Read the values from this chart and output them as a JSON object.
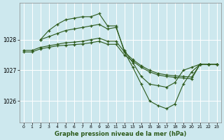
{
  "background_color": "#cde8ee",
  "grid_color": "#b0d8e0",
  "line_color": "#2d5a1b",
  "xlabel": "Graphe pression niveau de la mer (hPa)",
  "ylim": [
    1025.3,
    1029.2
  ],
  "xlim": [
    -0.5,
    23.5
  ],
  "yticks": [
    1026,
    1027,
    1028
  ],
  "xticks": [
    0,
    1,
    2,
    3,
    4,
    5,
    6,
    7,
    8,
    9,
    10,
    11,
    12,
    13,
    14,
    15,
    16,
    17,
    18,
    19,
    20,
    21,
    22,
    23
  ],
  "lines": [
    {
      "x": [
        2,
        3,
        4,
        5,
        6,
        7,
        8,
        9,
        10,
        11,
        12,
        13,
        14,
        15,
        16,
        17,
        18,
        19,
        20,
        21,
        22,
        23
      ],
      "y": [
        1028.0,
        1028.3,
        1028.5,
        1028.65,
        1028.7,
        1028.75,
        1028.75,
        1028.85,
        1028.45,
        1028.45,
        1027.6,
        1027.1,
        1026.55,
        1026.0,
        1025.85,
        1025.75,
        1025.9,
        1026.55,
        1026.95,
        1027.2,
        1027.2,
        1027.2
      ]
    },
    {
      "x": [
        2,
        3,
        4,
        5,
        6,
        7,
        8,
        9,
        10,
        11,
        12,
        13,
        14,
        15,
        16,
        17,
        18,
        19,
        20,
        21,
        22,
        23
      ],
      "y": [
        1028.0,
        1028.1,
        1028.2,
        1028.3,
        1028.35,
        1028.4,
        1028.45,
        1028.5,
        1028.35,
        1028.4,
        1027.65,
        1027.25,
        1026.8,
        1026.55,
        1026.5,
        1026.45,
        1026.6,
        1027.0,
        1027.1,
        1027.2,
        1027.2,
        1027.2
      ]
    },
    {
      "x": [
        0,
        1,
        2,
        3,
        4,
        5,
        6,
        7,
        8,
        9,
        10,
        11,
        12,
        13,
        14,
        15,
        16,
        17,
        18,
        19,
        20,
        21,
        22,
        23
      ],
      "y": [
        1027.65,
        1027.65,
        1027.75,
        1027.8,
        1027.85,
        1027.9,
        1027.92,
        1027.95,
        1028.0,
        1028.05,
        1027.95,
        1027.95,
        1027.6,
        1027.35,
        1027.15,
        1027.0,
        1026.9,
        1026.85,
        1026.82,
        1026.8,
        1026.78,
        1027.2,
        1027.2,
        1027.2
      ]
    },
    {
      "x": [
        0,
        1,
        2,
        3,
        4,
        5,
        6,
        7,
        8,
        9,
        10,
        11,
        12,
        13,
        14,
        15,
        16,
        17,
        18,
        19,
        20,
        21,
        22,
        23
      ],
      "y": [
        1027.6,
        1027.6,
        1027.7,
        1027.75,
        1027.8,
        1027.82,
        1027.84,
        1027.86,
        1027.9,
        1027.95,
        1027.85,
        1027.85,
        1027.5,
        1027.3,
        1027.1,
        1026.95,
        1026.85,
        1026.8,
        1026.77,
        1026.75,
        1026.72,
        1027.2,
        1027.2,
        1027.2
      ]
    }
  ]
}
